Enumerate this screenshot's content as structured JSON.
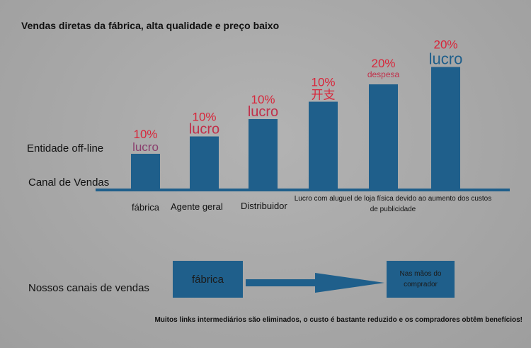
{
  "title": "Vendas diretas da fábrica, alta qualidade e preço baixo",
  "labels": {
    "entidade": "Entidade off-line",
    "canal": "Canal de Vendas",
    "nossos": "Nossos canais de vendas"
  },
  "flow": {
    "factory": "fábrica",
    "buyer": "Nas mãos do comprador"
  },
  "bottom_note": "Muitos links intermediários são eliminados, o custo é bastante reduzido e os compradores obtêm benefícios!",
  "colors": {
    "bar": "#1f5f8b",
    "pct": "#d8263a",
    "baseline": "#1f5f8b"
  },
  "chart_data": {
    "type": "bar",
    "title": "Vendas diretas da fábrica, alta qualidade e preço baixo",
    "categories": [
      "fábrica",
      "Agente geral",
      "Distribuidor",
      "Lucro com aluguel de loja física devido ao aumento dos custos de publicidade",
      "",
      ""
    ],
    "values": [
      1,
      2,
      3,
      4,
      5,
      6
    ],
    "bar_annotations": [
      {
        "pct": "10%",
        "word": "lucro"
      },
      {
        "pct": "10%",
        "word": "lucro"
      },
      {
        "pct": "10%",
        "word": "lucro"
      },
      {
        "pct": "10%",
        "word": "开支"
      },
      {
        "pct": "20%",
        "word": "despesa"
      },
      {
        "pct": "20%",
        "word": "lucro"
      }
    ],
    "ylim": [
      0,
      6
    ],
    "grid": false
  }
}
